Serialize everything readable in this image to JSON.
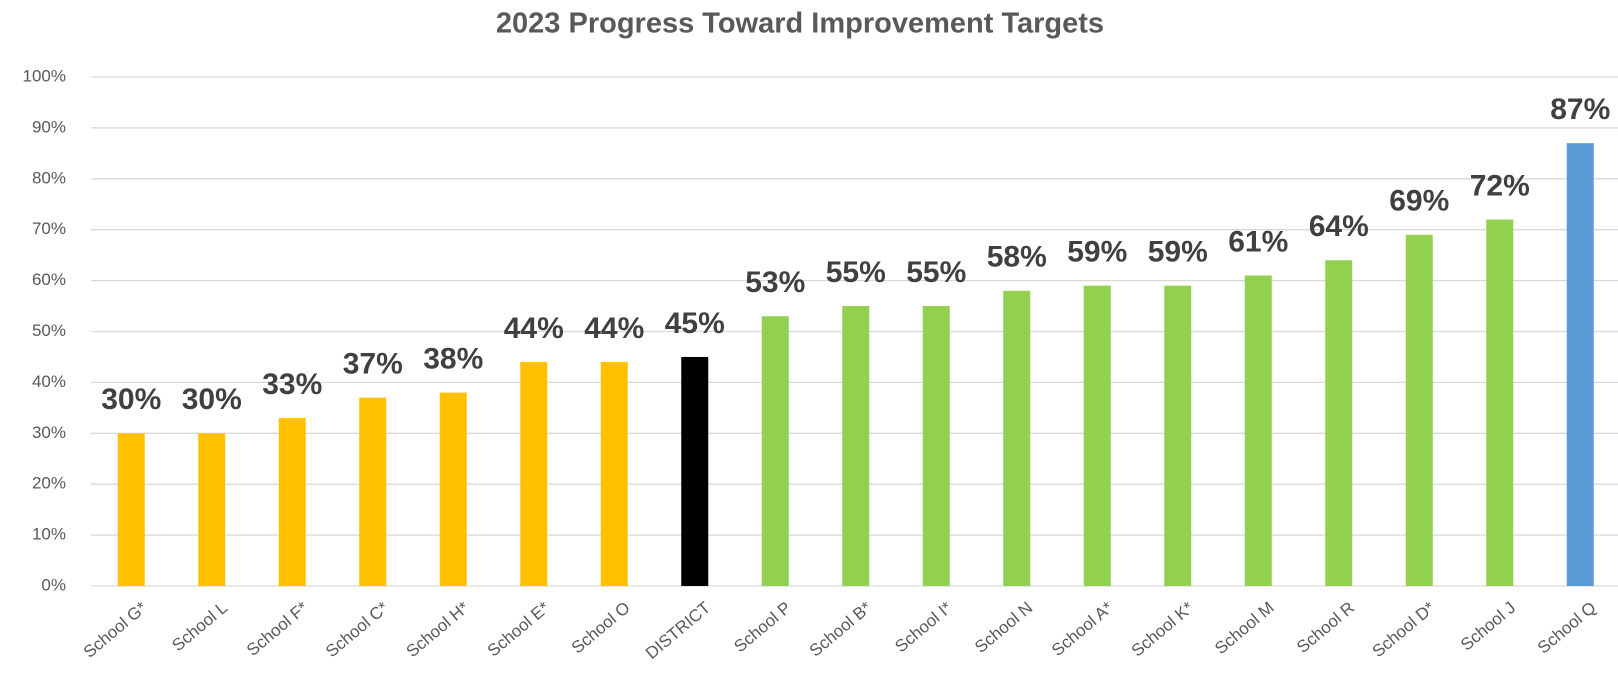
{
  "chart_data": {
    "type": "bar",
    "title": "2023 Progress Toward Improvement Targets",
    "categories": [
      "School G*",
      "School L",
      "School F*",
      "School C*",
      "School H*",
      "School E*",
      "School O",
      "DISTRICT",
      "School P",
      "School B*",
      "School I*",
      "School N",
      "School A*",
      "School K*",
      "School M",
      "School R",
      "School D*",
      "School J",
      "School Q"
    ],
    "values": [
      30,
      30,
      33,
      37,
      38,
      44,
      44,
      45,
      53,
      55,
      55,
      58,
      59,
      59,
      61,
      64,
      69,
      72,
      87
    ],
    "value_labels": [
      "30%",
      "30%",
      "33%",
      "37%",
      "38%",
      "44%",
      "44%",
      "45%",
      "53%",
      "55%",
      "55%",
      "58%",
      "59%",
      "59%",
      "61%",
      "64%",
      "69%",
      "72%",
      "87%"
    ],
    "colors": [
      "#ffc000",
      "#ffc000",
      "#ffc000",
      "#ffc000",
      "#ffc000",
      "#ffc000",
      "#ffc000",
      "#000000",
      "#92d050",
      "#92d050",
      "#92d050",
      "#92d050",
      "#92d050",
      "#92d050",
      "#92d050",
      "#92d050",
      "#92d050",
      "#92d050",
      "#5b9bd5"
    ],
    "ylim": [
      0,
      100
    ],
    "yticks": [
      {
        "value": 0,
        "label": "0%"
      },
      {
        "value": 10,
        "label": "10%"
      },
      {
        "value": 20,
        "label": "20%"
      },
      {
        "value": 30,
        "label": "30%"
      },
      {
        "value": 40,
        "label": "40%"
      },
      {
        "value": 50,
        "label": "50%"
      },
      {
        "value": 60,
        "label": "60%"
      },
      {
        "value": 70,
        "label": "70%"
      },
      {
        "value": 80,
        "label": "80%"
      },
      {
        "value": 90,
        "label": "90%"
      },
      {
        "value": 100,
        "label": "100%"
      }
    ],
    "grid": true
  }
}
